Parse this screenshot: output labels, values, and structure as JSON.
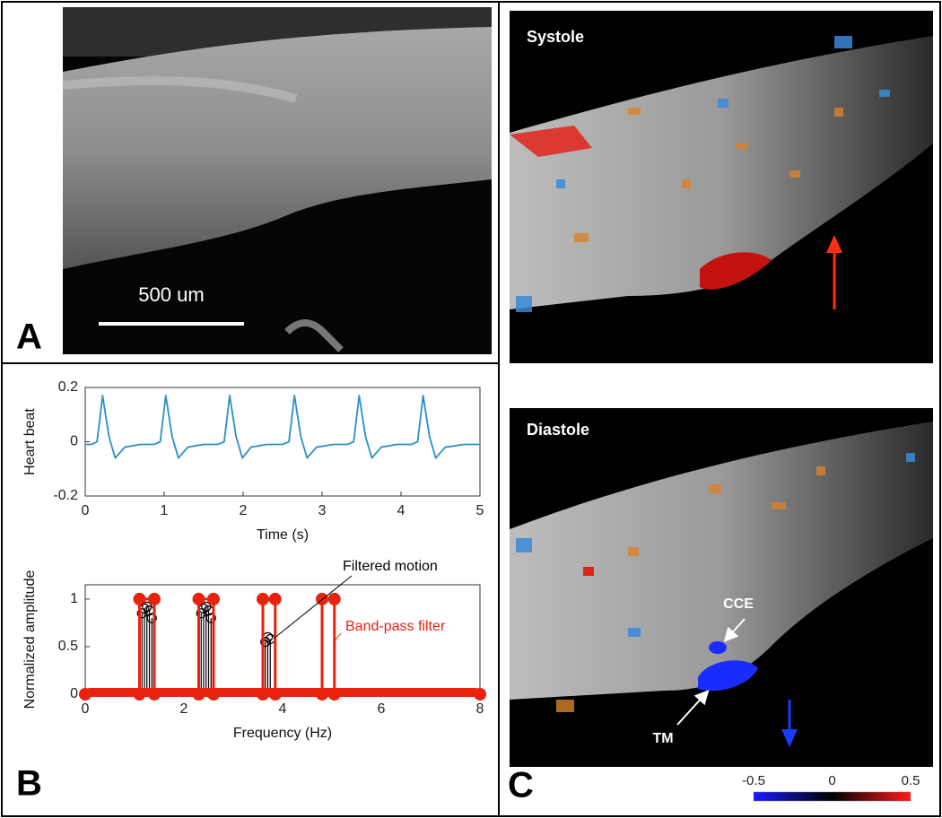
{
  "chart_data": [
    {
      "type": "line",
      "ylabel": "Heart beat",
      "xlabel": "Time (s)",
      "color": "#2b8fcc",
      "x": [
        0,
        0.08,
        0.15,
        0.22,
        0.3,
        0.38,
        0.5,
        0.7,
        0.87,
        0.95,
        1.02,
        1.1,
        1.18,
        1.3,
        1.5,
        1.68,
        1.76,
        1.83,
        1.91,
        1.99,
        2.1,
        2.3,
        2.5,
        2.58,
        2.65,
        2.73,
        2.81,
        2.93,
        3.15,
        3.32,
        3.4,
        3.47,
        3.55,
        3.63,
        3.75,
        3.95,
        4.13,
        4.21,
        4.28,
        4.36,
        4.44,
        4.56,
        4.8,
        5
      ],
      "values": [
        -0.01,
        -0.01,
        0.0,
        0.17,
        0.02,
        -0.06,
        -0.02,
        -0.01,
        -0.01,
        0.0,
        0.17,
        0.02,
        -0.06,
        -0.02,
        -0.01,
        -0.01,
        0.0,
        0.17,
        0.02,
        -0.06,
        -0.02,
        -0.01,
        -0.01,
        0.0,
        0.17,
        0.02,
        -0.06,
        -0.02,
        -0.01,
        -0.01,
        0.0,
        0.17,
        0.02,
        -0.06,
        -0.02,
        -0.01,
        -0.01,
        0.0,
        0.17,
        0.02,
        -0.06,
        -0.02,
        -0.01,
        -0.01
      ],
      "xlim": [
        0,
        5
      ],
      "xticks": [
        0,
        1,
        2,
        3,
        4,
        5
      ],
      "ylim": [
        -0.2,
        0.2
      ],
      "yticks": [
        -0.2,
        0,
        0.2
      ]
    },
    {
      "type": "stem",
      "ylabel": "Normalized amplitude",
      "xlabel": "Frequency (Hz)",
      "xlim": [
        0,
        8
      ],
      "xticks": [
        0,
        2,
        4,
        6,
        8
      ],
      "ylim": [
        0,
        1.15
      ],
      "yticks": [
        0,
        0.5,
        1
      ],
      "series": [
        {
          "name": "Filtered motion",
          "type": "stem",
          "color": "#000000",
          "x": [
            1.15,
            1.2,
            1.25,
            1.3,
            1.35,
            2.35,
            2.4,
            2.45,
            2.5,
            2.55,
            3.65,
            3.7,
            3.75
          ],
          "values": [
            0.85,
            0.9,
            0.92,
            0.88,
            0.8,
            0.85,
            0.9,
            0.92,
            0.88,
            0.8,
            0.55,
            0.6,
            0.58
          ]
        },
        {
          "name": "Band-pass filter",
          "type": "line",
          "color": "#e8220e",
          "x": [
            0,
            1.1,
            1.1,
            1.4,
            1.4,
            2.3,
            2.3,
            2.6,
            2.6,
            3.6,
            3.6,
            3.85,
            3.85,
            4.8,
            4.8,
            5.05,
            5.05,
            8
          ],
          "values": [
            0,
            0,
            1,
            1,
            0,
            0,
            1,
            1,
            0,
            0,
            1,
            1,
            0,
            0,
            1,
            1,
            0,
            0
          ]
        }
      ]
    }
  ],
  "figure": {
    "panel_labels": [
      "A",
      "B",
      "C"
    ],
    "scale_bar": "500 um",
    "image_titles": [
      "Systole",
      "Diastole"
    ],
    "annotations": [
      "CCE",
      "TM"
    ],
    "colorbar": {
      "lim": [
        -0.5,
        0.5
      ],
      "ticks": [
        -0.5,
        0,
        0.5
      ]
    }
  }
}
